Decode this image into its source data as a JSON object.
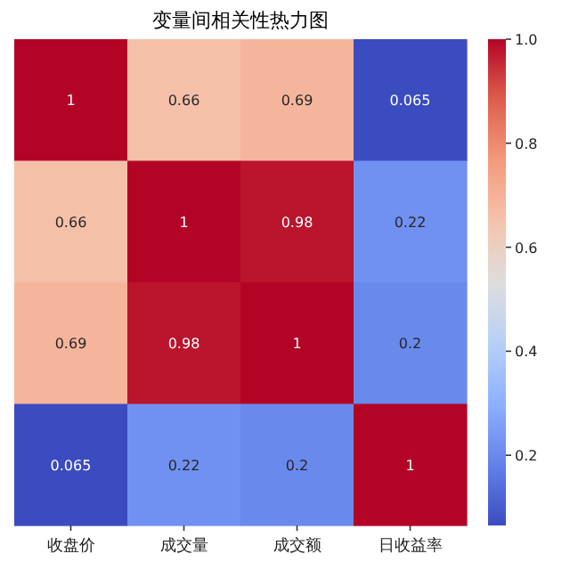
{
  "chart_data": {
    "type": "heatmap",
    "title": "变量间相关性热力图",
    "categories": [
      "收盘价",
      "成交量",
      "成交额",
      "日收益率"
    ],
    "y_categories": [
      null,
      null,
      null,
      null
    ],
    "cells": [
      [
        1,
        0.66,
        0.69,
        0.065
      ],
      [
        0.66,
        1,
        0.98,
        0.22
      ],
      [
        0.69,
        0.98,
        1,
        0.2
      ],
      [
        0.065,
        0.22,
        0.2,
        1
      ]
    ],
    "data_labels": true,
    "clim": [
      0.065,
      1
    ],
    "cticks": [
      {
        "value": 1.0,
        "label": "1.0"
      },
      {
        "value": 0.8,
        "label": "0.8"
      },
      {
        "value": 0.6,
        "label": "0.6"
      },
      {
        "value": 0.4,
        "label": "0.4"
      },
      {
        "value": 0.2,
        "label": "0.2"
      }
    ],
    "tick_labels": "x"
  }
}
